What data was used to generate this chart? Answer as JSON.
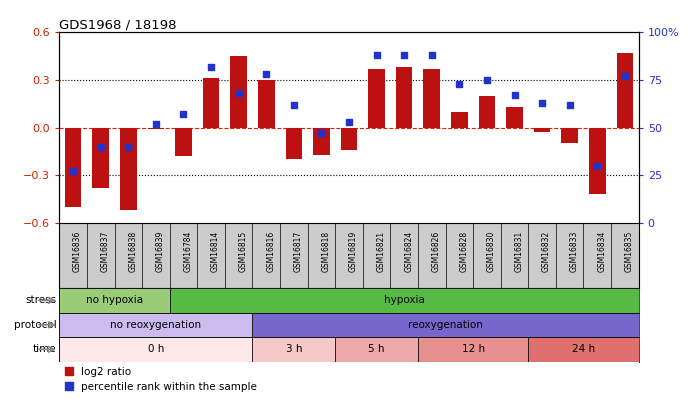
{
  "title": "GDS1968 / 18198",
  "samples": [
    "GSM16836",
    "GSM16837",
    "GSM16838",
    "GSM16839",
    "GSM16784",
    "GSM16814",
    "GSM16815",
    "GSM16816",
    "GSM16817",
    "GSM16818",
    "GSM16819",
    "GSM16821",
    "GSM16824",
    "GSM16826",
    "GSM16828",
    "GSM16830",
    "GSM16831",
    "GSM16832",
    "GSM16833",
    "GSM16834",
    "GSM16835"
  ],
  "log2_ratio": [
    -0.5,
    -0.38,
    -0.52,
    -0.01,
    -0.18,
    0.31,
    0.45,
    0.3,
    -0.2,
    -0.17,
    -0.14,
    0.37,
    0.38,
    0.37,
    0.1,
    0.2,
    0.13,
    -0.03,
    -0.1,
    -0.42,
    0.47
  ],
  "percentile_rank": [
    27,
    40,
    40,
    52,
    57,
    82,
    68,
    78,
    62,
    47,
    53,
    88,
    88,
    88,
    73,
    75,
    67,
    63,
    62,
    30,
    77
  ],
  "ylim_left": [
    -0.6,
    0.6
  ],
  "ylim_right": [
    0,
    100
  ],
  "yticks_left": [
    -0.6,
    -0.3,
    0.0,
    0.3,
    0.6
  ],
  "yticks_right": [
    0,
    25,
    50,
    75,
    100
  ],
  "ytick_labels_right": [
    "0",
    "25",
    "50",
    "75",
    "100%"
  ],
  "bar_color": "#bb1111",
  "dot_color": "#2233cc",
  "zero_line_color": "#dd2200",
  "stress_groups": [
    {
      "label": "no hypoxia",
      "start": 0,
      "end": 4,
      "color": "#99cc77"
    },
    {
      "label": "hypoxia",
      "start": 4,
      "end": 21,
      "color": "#55bb44"
    }
  ],
  "protocol_groups": [
    {
      "label": "no reoxygenation",
      "start": 0,
      "end": 7,
      "color": "#ccbbee"
    },
    {
      "label": "reoxygenation",
      "start": 7,
      "end": 21,
      "color": "#7766cc"
    }
  ],
  "time_groups": [
    {
      "label": "0 h",
      "start": 0,
      "end": 7,
      "color": "#fce8e8"
    },
    {
      "label": "3 h",
      "start": 7,
      "end": 10,
      "color": "#f5c8c8"
    },
    {
      "label": "5 h",
      "start": 10,
      "end": 13,
      "color": "#eeaaaa"
    },
    {
      "label": "12 h",
      "start": 13,
      "end": 17,
      "color": "#e89090"
    },
    {
      "label": "24 h",
      "start": 17,
      "end": 21,
      "color": "#e07070"
    }
  ],
  "legend_items": [
    {
      "label": "log2 ratio",
      "color": "#bb1111"
    },
    {
      "label": "percentile rank within the sample",
      "color": "#2233cc"
    }
  ],
  "background_color": "#ffffff",
  "tick_label_color_left": "#cc2200",
  "tick_label_color_right": "#2233cc",
  "xtick_bg_color": "#cccccc"
}
